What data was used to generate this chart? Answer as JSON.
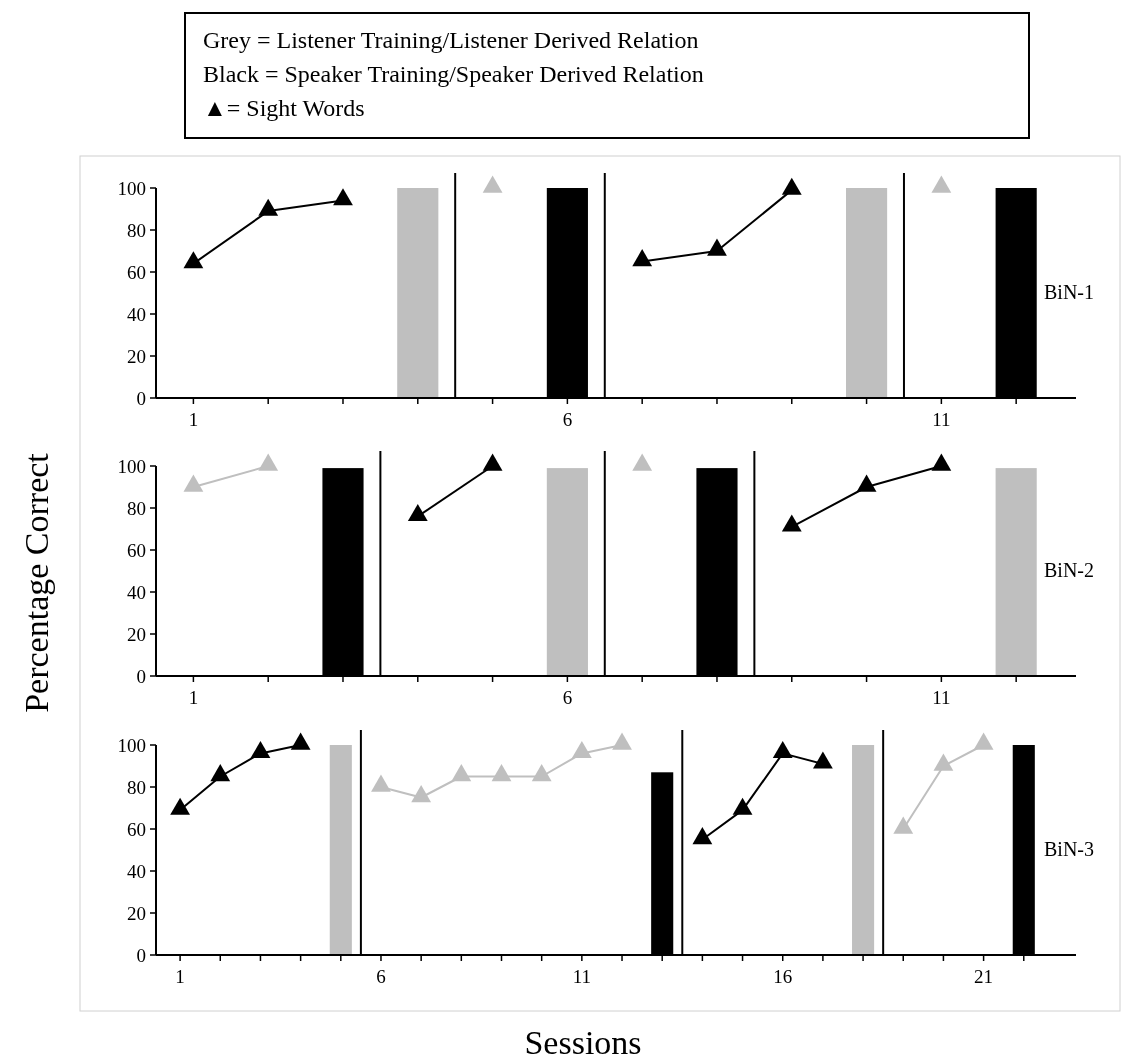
{
  "chart_data": [
    {
      "type": "line",
      "title": "BiN-1",
      "annotations": [
        "Grey = Listener Training/Listener Derived Relation",
        "Black = Speaker Training/Speaker Derived Relation",
        "▲= Sight Words"
      ],
      "marker": "triangle",
      "xlim": [
        0.5,
        12.8
      ],
      "ylim": [
        0,
        100
      ],
      "yticks": [
        0,
        20,
        40,
        60,
        80,
        100
      ],
      "xticks": [
        1,
        {
          "value": 2,
          "label": null
        },
        {
          "value": 3,
          "label": null
        },
        {
          "value": 4,
          "label": null
        },
        {
          "value": 5,
          "label": null
        },
        6,
        {
          "value": 7,
          "label": null
        },
        {
          "value": 8,
          "label": null
        },
        {
          "value": 9,
          "label": null
        },
        {
          "value": 10,
          "label": null
        },
        11,
        {
          "value": 12,
          "label": null
        }
      ],
      "ref_lines": [
        {
          "axis": "x",
          "value": 4.5
        },
        {
          "axis": "x",
          "value": 6.5
        },
        {
          "axis": "x",
          "value": 10.5
        }
      ],
      "series": [
        {
          "color": "#000000",
          "x": [
            1,
            2,
            3
          ],
          "values": [
            64,
            89,
            94
          ]
        },
        {
          "type": "bar",
          "color": "#bfbfbf",
          "x": [
            4
          ],
          "values": [
            100
          ]
        },
        {
          "color": "#bfbfbf",
          "x": [
            5
          ],
          "values": [
            100
          ]
        },
        {
          "type": "bar",
          "color": "#000000",
          "x": [
            6
          ],
          "values": [
            100
          ]
        },
        {
          "color": "#000000",
          "x": [
            7,
            8,
            9
          ],
          "values": [
            65,
            70,
            99
          ]
        },
        {
          "type": "bar",
          "color": "#bfbfbf",
          "x": [
            10
          ],
          "values": [
            100
          ]
        },
        {
          "color": "#bfbfbf",
          "x": [
            11
          ],
          "values": [
            100
          ]
        },
        {
          "type": "bar",
          "color": "#000000",
          "x": [
            12
          ],
          "values": [
            100
          ]
        }
      ]
    },
    {
      "type": "line",
      "title": "BiN-2",
      "ylabel": "Percentage Correct",
      "marker": "triangle",
      "xlim": [
        0.5,
        12.8
      ],
      "ylim": [
        0,
        100
      ],
      "yticks": [
        0,
        20,
        40,
        60,
        80,
        100
      ],
      "xticks": [
        1,
        {
          "value": 2,
          "label": null
        },
        {
          "value": 3,
          "label": null
        },
        {
          "value": 4,
          "label": null
        },
        {
          "value": 5,
          "label": null
        },
        6,
        {
          "value": 7,
          "label": null
        },
        {
          "value": 8,
          "label": null
        },
        {
          "value": 9,
          "label": null
        },
        {
          "value": 10,
          "label": null
        },
        11,
        {
          "value": 12,
          "label": null
        }
      ],
      "ref_lines": [
        {
          "axis": "x",
          "value": 3.5
        },
        {
          "axis": "x",
          "value": 6.5
        },
        {
          "axis": "x",
          "value": 8.5
        }
      ],
      "series": [
        {
          "color": "#bfbfbf",
          "x": [
            1,
            2
          ],
          "values": [
            90,
            100
          ]
        },
        {
          "type": "bar",
          "color": "#000000",
          "x": [
            3
          ],
          "values": [
            99
          ]
        },
        {
          "color": "#000000",
          "x": [
            4,
            5
          ],
          "values": [
            76,
            100
          ]
        },
        {
          "type": "bar",
          "color": "#bfbfbf",
          "x": [
            6
          ],
          "values": [
            99
          ]
        },
        {
          "color": "#bfbfbf",
          "x": [
            7
          ],
          "values": [
            100
          ]
        },
        {
          "type": "bar",
          "color": "#000000",
          "x": [
            8
          ],
          "values": [
            99
          ]
        },
        {
          "color": "#000000",
          "x": [
            9,
            10,
            11
          ],
          "values": [
            71,
            90,
            100
          ]
        },
        {
          "type": "bar",
          "color": "#bfbfbf",
          "x": [
            12
          ],
          "values": [
            99
          ]
        }
      ]
    },
    {
      "type": "line",
      "title": "BiN-3",
      "xlabel": "Sessions",
      "marker": "triangle",
      "xlim": [
        0.4,
        23.3
      ],
      "ylim": [
        0,
        100
      ],
      "yticks": [
        0,
        20,
        40,
        60,
        80,
        100
      ],
      "xticks": [
        1,
        {
          "value": 2,
          "label": null
        },
        {
          "value": 3,
          "label": null
        },
        {
          "value": 4,
          "label": null
        },
        {
          "value": 5,
          "label": null
        },
        6,
        {
          "value": 7,
          "label": null
        },
        {
          "value": 8,
          "label": null
        },
        {
          "value": 9,
          "label": null
        },
        {
          "value": 10,
          "label": null
        },
        11,
        {
          "value": 12,
          "label": null
        },
        {
          "value": 13,
          "label": null
        },
        {
          "value": 14,
          "label": null
        },
        {
          "value": 15,
          "label": null
        },
        16,
        {
          "value": 17,
          "label": null
        },
        {
          "value": 18,
          "label": null
        },
        {
          "value": 19,
          "label": null
        },
        {
          "value": 20,
          "label": null
        },
        21,
        {
          "value": 22,
          "label": null
        }
      ],
      "ref_lines": [
        {
          "axis": "x",
          "value": 5.5
        },
        {
          "axis": "x",
          "value": 13.5
        },
        {
          "axis": "x",
          "value": 18.5
        }
      ],
      "series": [
        {
          "color": "#000000",
          "x": [
            1,
            2,
            3,
            4
          ],
          "values": [
            69,
            85,
            96,
            100
          ]
        },
        {
          "type": "bar",
          "color": "#bfbfbf",
          "x": [
            5
          ],
          "values": [
            100
          ]
        },
        {
          "color": "#bfbfbf",
          "x": [
            6,
            7,
            8,
            9,
            10,
            11,
            12
          ],
          "values": [
            80,
            75,
            85,
            85,
            85,
            96,
            100
          ]
        },
        {
          "type": "bar",
          "color": "#000000",
          "x": [
            13
          ],
          "values": [
            87
          ]
        },
        {
          "color": "#000000",
          "x": [
            14,
            15,
            16,
            17
          ],
          "values": [
            55,
            69,
            96,
            91
          ]
        },
        {
          "type": "bar",
          "color": "#bfbfbf",
          "x": [
            18
          ],
          "values": [
            100
          ]
        },
        {
          "color": "#bfbfbf",
          "x": [
            19,
            20,
            21
          ],
          "values": [
            60,
            90,
            100
          ]
        },
        {
          "type": "bar",
          "color": "#000000",
          "x": [
            22
          ],
          "values": [
            100
          ]
        }
      ]
    }
  ]
}
